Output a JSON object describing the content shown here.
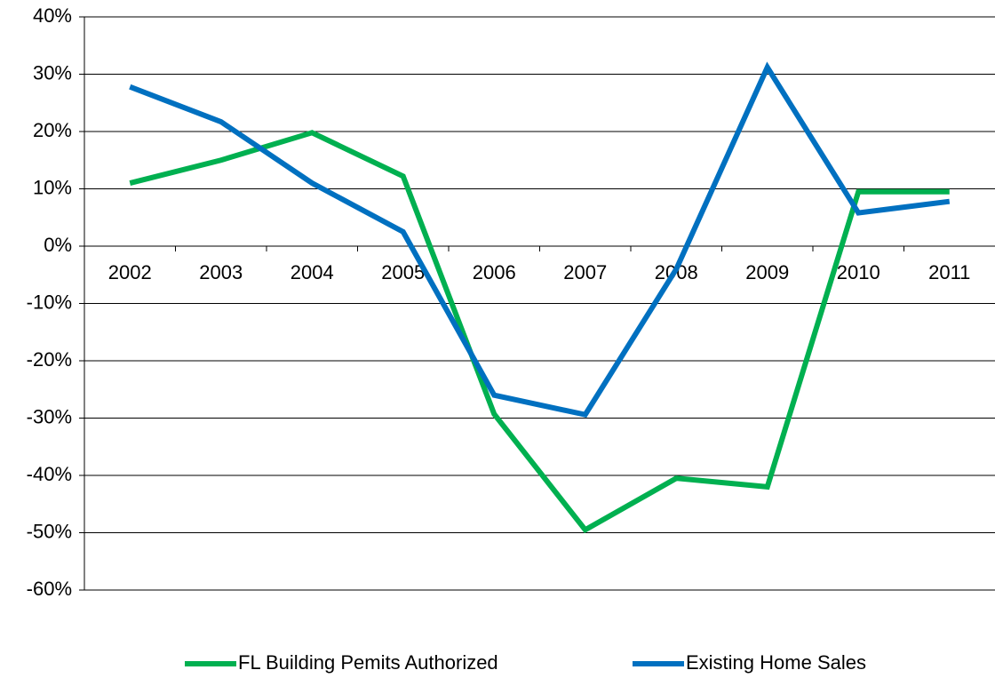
{
  "chart_data": {
    "type": "line",
    "categories": [
      "2002",
      "2003",
      "2004",
      "2005",
      "2006",
      "2007",
      "2008",
      "2009",
      "2010",
      "2011"
    ],
    "series": [
      {
        "name": "FL Building Pemits Authorized",
        "color": "#00b050",
        "values": [
          11,
          15,
          19.8,
          12.2,
          -29.3,
          -49.5,
          -40.5,
          -42,
          9.5,
          9.5
        ]
      },
      {
        "name": "Existing Home Sales",
        "color": "#0070c0",
        "values": [
          27.8,
          21.7,
          11,
          2.5,
          -26,
          -29.4,
          -4,
          31.2,
          5.8,
          7.8
        ]
      }
    ],
    "ylim": [
      -60,
      40
    ],
    "yticks": [
      {
        "value": -60,
        "label": "-60%"
      },
      {
        "value": -50,
        "label": "-50%"
      },
      {
        "value": -40,
        "label": "-40%"
      },
      {
        "value": -30,
        "label": "-30%"
      },
      {
        "value": -20,
        "label": "-20%"
      },
      {
        "value": -10,
        "label": "-10%"
      },
      {
        "value": 0,
        "label": "0%"
      },
      {
        "value": 10,
        "label": "10%"
      },
      {
        "value": 20,
        "label": "20%"
      },
      {
        "value": 30,
        "label": "30%"
      },
      {
        "value": 40,
        "label": "40%"
      }
    ],
    "grid": true,
    "legend": "bottom"
  }
}
